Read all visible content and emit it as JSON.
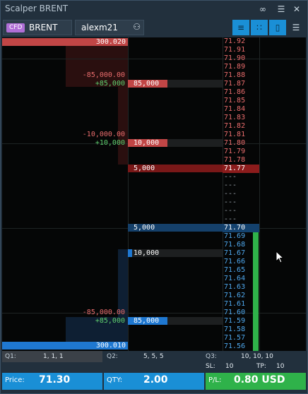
{
  "window": {
    "title": "Scalper BRENT"
  },
  "toolbar": {
    "cfd_badge": "CFD",
    "symbol": "BRENT",
    "account": "alexm21"
  },
  "colors": {
    "ask": "#c14646",
    "bid": "#1f78d1",
    "ask_price_text": "#ea6d6d",
    "bid_price_text": "#4fa8ee",
    "profit": "#2fb24a",
    "accent": "#1a8fd6"
  },
  "ladder": {
    "asks_top_volume": "300.020",
    "bids_bottom_volume": "300.010",
    "ask_levels": [
      {
        "price": "71.92"
      },
      {
        "price": "71.91"
      },
      {
        "price": "71.90"
      },
      {
        "price": "71.89"
      },
      {
        "price": "71.88",
        "level_sum": "-85,000.00"
      },
      {
        "price": "71.87",
        "level_net": "+85,000",
        "volume": "85,000"
      },
      {
        "price": "71.86"
      },
      {
        "price": "71.85"
      },
      {
        "price": "71.84"
      },
      {
        "price": "71.83"
      },
      {
        "price": "71.82"
      },
      {
        "price": "71.81",
        "level_sum": "-10,000.00"
      },
      {
        "price": "71.80",
        "level_net": "+10,000",
        "volume": "10,000"
      },
      {
        "price": "71.79"
      },
      {
        "price": "71.78"
      },
      {
        "price": "71.77",
        "volume": "5,000",
        "best": true
      }
    ],
    "spread_rows": [
      "---",
      "---",
      "---",
      "---",
      "---",
      "---"
    ],
    "bid_levels": [
      {
        "price": "71.70",
        "volume": "5,000",
        "best": true
      },
      {
        "price": "71.69"
      },
      {
        "price": "71.68"
      },
      {
        "price": "71.67",
        "volume": "10,000"
      },
      {
        "price": "71.66"
      },
      {
        "price": "71.65"
      },
      {
        "price": "71.64"
      },
      {
        "price": "71.63"
      },
      {
        "price": "71.62"
      },
      {
        "price": "71.61"
      },
      {
        "price": "71.60",
        "level_sum": "-85,000.00"
      },
      {
        "price": "71.59",
        "level_net": "+85,000",
        "volume": "85,000"
      },
      {
        "price": "71.58"
      },
      {
        "price": "71.57"
      },
      {
        "price": "71.56"
      }
    ]
  },
  "stats": {
    "q1_label": "Q1:",
    "q1_value": "1, 1, 1",
    "q2_label": "Q2:",
    "q2_value": "5, 5, 5",
    "q3_label": "Q3:",
    "q3_value": "10, 10, 10",
    "sl_label": "SL:",
    "sl_value": "10",
    "tp_label": "TP:",
    "tp_value": "10"
  },
  "footer": {
    "price_label": "Price:",
    "price_value": "71.30",
    "qty_label": "QTY:",
    "qty_value": "2.00",
    "pl_label": "P/L:",
    "pl_value": "0.80 USD"
  }
}
